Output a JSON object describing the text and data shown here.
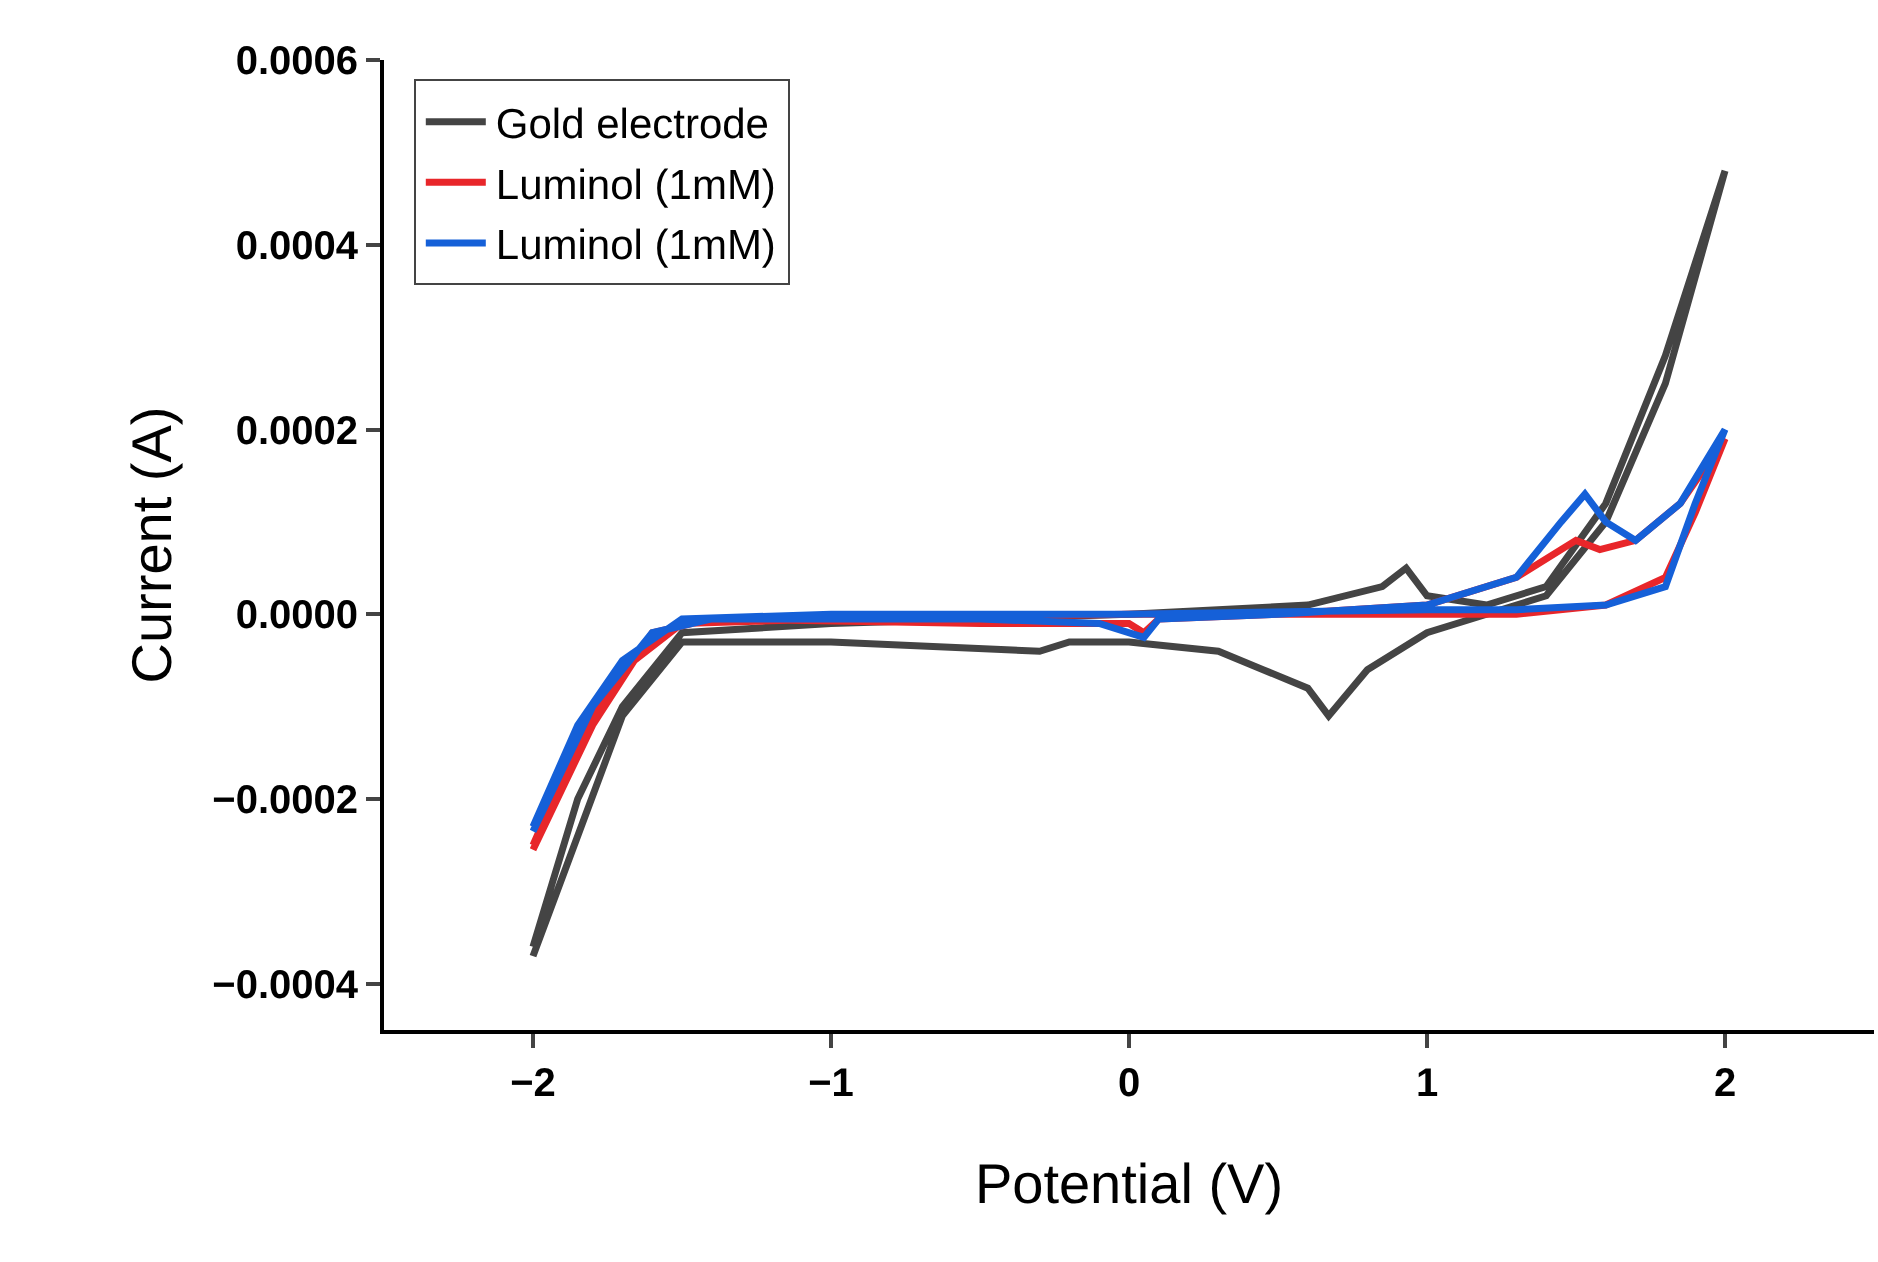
{
  "chart_data": {
    "type": "line",
    "xlabel": "Potential (V)",
    "ylabel": "Current (A)",
    "xlim": [
      -2.5,
      2.5
    ],
    "ylim": [
      -0.00045,
      0.0006
    ],
    "xticks": [
      {
        "value": -2,
        "label": "−2"
      },
      {
        "value": -1,
        "label": "−1"
      },
      0,
      1,
      2
    ],
    "yticks": [
      {
        "value": -0.0004,
        "label": "−0.0004"
      },
      {
        "value": -0.0002,
        "label": "−0.0002"
      },
      {
        "value": 0,
        "label": "0.0000"
      },
      {
        "value": 0.0002,
        "label": "0.0002"
      },
      {
        "value": 0.0004,
        "label": "0.0004"
      },
      {
        "value": 0.0006,
        "label": "0.0006"
      }
    ],
    "grid": false,
    "legend": "top left",
    "marker": "none",
    "line_style": "solid",
    "x": [
      -2,
      -1.85,
      -1.7,
      -1.5,
      -1,
      -0.3,
      -0.2,
      0,
      0.3,
      0.45,
      0.6,
      0.67,
      0.8,
      1,
      1.2,
      1.4,
      1.6,
      1.8,
      2,
      1.8,
      1.6,
      1.4,
      1.2,
      1,
      0.93,
      0.85,
      0.6,
      0,
      -1,
      -1.5,
      -1.7,
      -1.85,
      -2
    ],
    "series": [
      {
        "name": "Gold electrode",
        "color": "#444444",
        "values": [
          -0.00037,
          -0.00024,
          -0.00011,
          -3e-05,
          -3e-05,
          -4e-05,
          -3e-05,
          -3e-05,
          -4e-05,
          -6e-05,
          -8e-05,
          -0.00011,
          -6e-05,
          -2e-05,
          0,
          2e-05,
          0.0001,
          0.00025,
          0.00048,
          0.00028,
          0.00012,
          3e-05,
          1e-05,
          2e-05,
          5e-05,
          3e-05,
          1e-05,
          0,
          -1e-05,
          -2e-05,
          -0.0001,
          -0.0002,
          -0.00036
        ]
      },
      {
        "name": "Luminol (1mM)",
        "color": "#e8262a",
        "x": [
          -2,
          -1.8,
          -1.6,
          -1.4,
          -0.5,
          0,
          0.05,
          0.1,
          0.5,
          1,
          1.3,
          1.5,
          1.58,
          1.7,
          1.85,
          2,
          1.9,
          1.8,
          1.6,
          1.3,
          1,
          0.5,
          0,
          -1,
          -1.5,
          -1.7,
          -1.85,
          -2
        ],
        "values": [
          -0.000255,
          -0.00012,
          -2e-05,
          -5e-06,
          -1e-05,
          -1e-05,
          -2e-05,
          -5e-06,
          0,
          1e-05,
          4e-05,
          8e-05,
          7e-05,
          8e-05,
          0.00012,
          0.00019,
          0.00011,
          4e-05,
          1e-05,
          0,
          0,
          0,
          0,
          -5e-06,
          -1e-05,
          -6e-05,
          -0.00014,
          -0.00025
        ]
      },
      {
        "name": "Luminol (1mM)",
        "color": "#1560d8",
        "x": [
          -2,
          -1.8,
          -1.6,
          -1.4,
          -0.5,
          -0.1,
          0.05,
          0.1,
          0.5,
          1,
          1.3,
          1.45,
          1.53,
          1.6,
          1.7,
          1.85,
          2,
          1.9,
          1.8,
          1.6,
          1.3,
          1,
          0,
          -1,
          -1.5,
          -1.7,
          -1.85,
          -2
        ],
        "values": [
          -0.000235,
          -0.0001,
          -2e-05,
          -5e-06,
          -5e-06,
          -1e-05,
          -2.5e-05,
          -5e-06,
          0,
          1e-05,
          4e-05,
          0.0001,
          0.00013,
          0.0001,
          8e-05,
          0.00012,
          0.0002,
          0.00012,
          3e-05,
          1e-05,
          5e-06,
          5e-06,
          0,
          0,
          -5e-06,
          -5e-05,
          -0.00012,
          -0.00023
        ]
      }
    ]
  }
}
